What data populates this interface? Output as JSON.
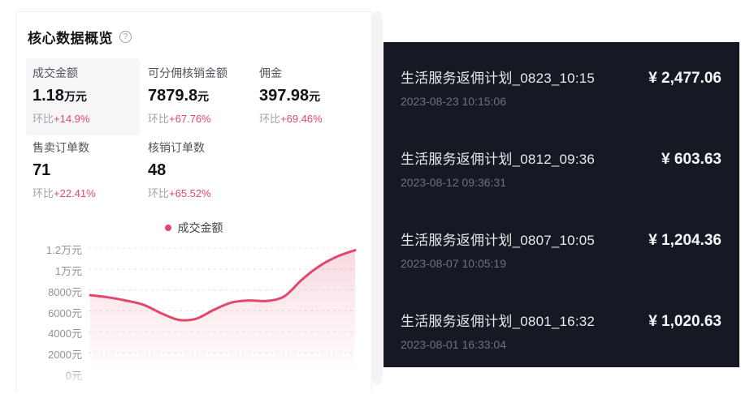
{
  "colors": {
    "accent": "#e2486b",
    "dark_panel_bg": "#161823",
    "area_fill_top": "rgba(226,72,108,0.20)",
    "area_fill_bottom": "rgba(226,72,108,0)"
  },
  "overview": {
    "title": "核心数据概览",
    "help_icon": "?",
    "metrics_row1": [
      {
        "label": "成交金额",
        "value": "1.18",
        "unit": "万元",
        "compare_label": "环比",
        "compare": "+14.9%",
        "highlighted": true
      },
      {
        "label": "可分佣核销金额",
        "value": "7879.8",
        "unit": "元",
        "compare_label": "环比",
        "compare": "+67.76%",
        "highlighted": false
      },
      {
        "label": "佣金",
        "value": "397.98",
        "unit": "元",
        "compare_label": "环比",
        "compare": "+69.46%",
        "highlighted": false
      }
    ],
    "metrics_row2": [
      {
        "label": "售卖订单数",
        "value": "71",
        "unit": "",
        "compare_label": "环比",
        "compare": "+22.41%"
      },
      {
        "label": "核销订单数",
        "value": "48",
        "unit": "",
        "compare_label": "环比",
        "compare": "+65.52%"
      }
    ]
  },
  "chart_data": {
    "type": "area",
    "title": "成交金额",
    "legend": [
      {
        "label": "成交金额",
        "color": "#e2486b"
      }
    ],
    "legend_position": "top-center",
    "grid": "horizontal dashed",
    "ylim": [
      0,
      12400
    ],
    "y_ticks": [
      {
        "label": "1.2万元",
        "value": 12000
      },
      {
        "label": "1万元",
        "value": 10000
      },
      {
        "label": "8000元",
        "value": 8000
      },
      {
        "label": "6000元",
        "value": 6000
      },
      {
        "label": "4000元",
        "value": 4000
      },
      {
        "label": "2000元",
        "value": 2000
      },
      {
        "label": "0元",
        "value": 0
      }
    ],
    "x_labels_visible": false,
    "values": [
      7500,
      7300,
      7000,
      6600,
      5800,
      5150,
      5250,
      6100,
      6800,
      7000,
      6950,
      7400,
      9000,
      10300,
      11200,
      11800
    ]
  },
  "transactions": {
    "items": [
      {
        "title": "生活服务返佣计划_0823_10:15",
        "amount": "¥ 2,477.06",
        "time": "2023-08-23 10:15:06"
      },
      {
        "title": "生活服务返佣计划_0812_09:36",
        "amount": "¥ 603.63",
        "time": "2023-08-12 09:36:31"
      },
      {
        "title": "生活服务返佣计划_0807_10:05",
        "amount": "¥ 1,204.36",
        "time": "2023-08-07 10:05:19"
      },
      {
        "title": "生活服务返佣计划_0801_16:32",
        "amount": "¥ 1,020.63",
        "time": "2023-08-01 16:33:04"
      }
    ]
  }
}
